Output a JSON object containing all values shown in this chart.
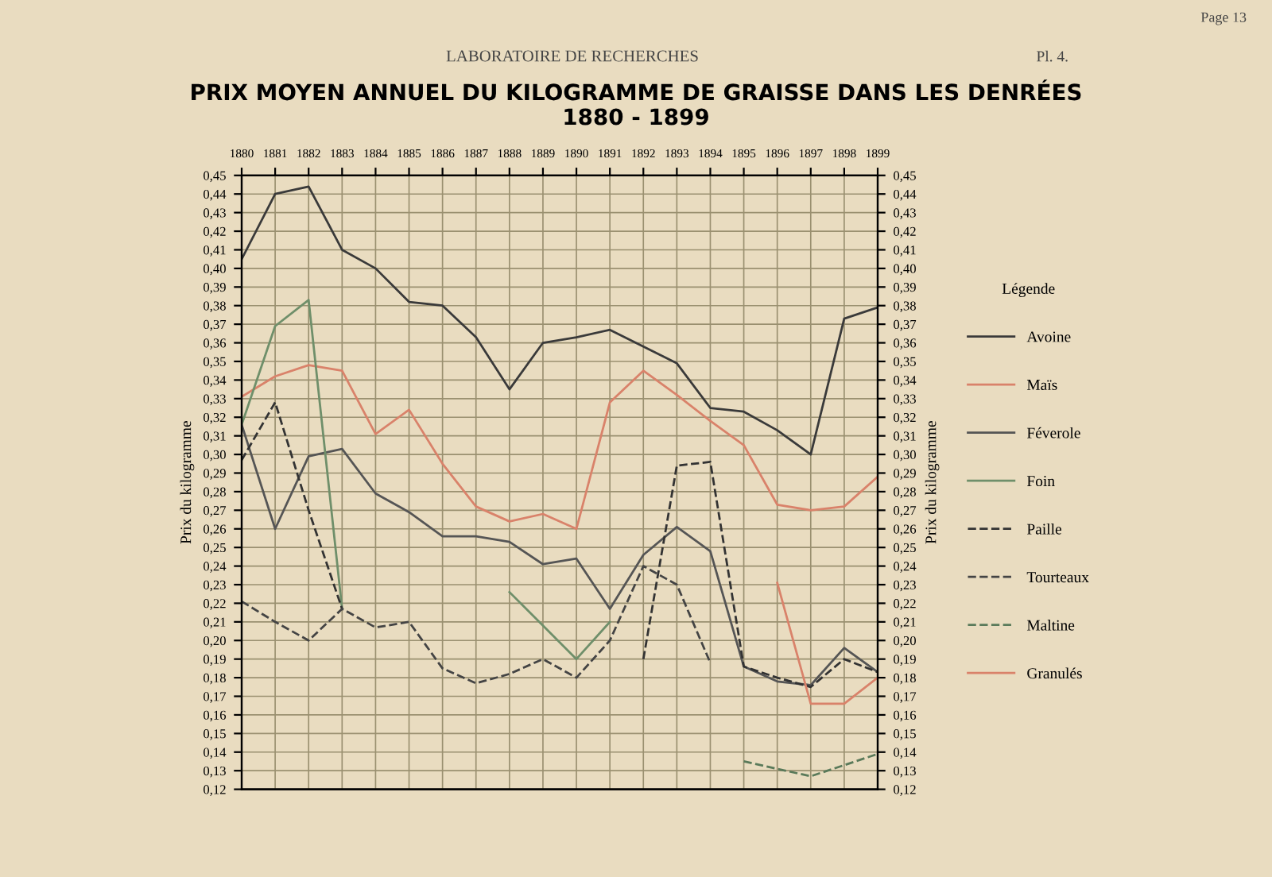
{
  "chart_data": {
    "type": "line",
    "title": "PRIX MOYEN ANNUEL DU KILOGRAMME DE GRAISSE DANS LES DENRÉES\n1880 - 1899",
    "ylabel": "Prix du kilogramme",
    "y2label": "Prix du kilogramme",
    "legend_title": "Légende",
    "annotations": [
      "LABORATOIRE DE RECHERCHES",
      "Page 13",
      "Pl. 4."
    ],
    "categories": [
      "1880",
      "1881",
      "1882",
      "1883",
      "1884",
      "1885",
      "1886",
      "1887",
      "1888",
      "1889",
      "1890",
      "1891",
      "1892",
      "1893",
      "1894",
      "1895",
      "1896",
      "1897",
      "1898",
      "1899"
    ],
    "series": [
      {
        "name": "Avoine",
        "color": "#3a3a3a",
        "values": [
          0.405,
          0.44,
          0.444,
          0.41,
          0.4,
          0.382,
          0.38,
          0.363,
          0.335,
          0.36,
          0.363,
          0.367,
          0.358,
          0.349,
          0.325,
          0.323,
          0.313,
          0.3,
          0.373,
          0.379
        ]
      },
      {
        "name": "Maïs",
        "color": "#d9826a",
        "values": [
          0.331,
          0.342,
          0.348,
          0.345,
          0.311,
          0.324,
          0.295,
          0.272,
          0.264,
          0.268,
          0.26,
          0.328,
          0.345,
          0.332,
          0.318,
          0.305,
          0.273,
          0.27,
          0.272,
          0.288
        ]
      },
      {
        "name": "Féverole",
        "color": "#555555",
        "values": [
          0.316,
          0.26,
          0.299,
          0.303,
          0.279,
          0.269,
          0.256,
          0.256,
          0.253,
          0.241,
          0.244,
          0.217,
          0.246,
          0.261,
          0.248,
          0.186,
          0.178,
          0.176,
          0.196,
          0.183
        ]
      },
      {
        "name": "Foin",
        "color": "#6f8f6a",
        "values": [
          0.316,
          0.369,
          0.383,
          0.217,
          null,
          null,
          null,
          null,
          0.226,
          0.208,
          0.19,
          0.21,
          null,
          null,
          null,
          null,
          null,
          null,
          null,
          null
        ]
      },
      {
        "name": "Paille",
        "color": "#333333",
        "line_style": "dashed",
        "values": [
          0.297,
          0.328,
          0.27,
          0.217,
          null,
          null,
          null,
          null,
          null,
          null,
          null,
          null,
          0.19,
          0.294,
          0.296,
          0.186,
          0.18,
          0.175,
          0.19,
          0.183
        ]
      },
      {
        "name": "Tourteaux",
        "color": "#444444",
        "line_style": "dashed",
        "values": [
          0.221,
          0.21,
          0.2,
          0.217,
          0.207,
          0.21,
          0.185,
          0.177,
          0.182,
          0.19,
          0.18,
          0.2,
          0.24,
          0.23,
          0.188,
          null,
          null,
          null,
          null,
          null
        ]
      },
      {
        "name": "Maltine",
        "color": "#5a7a5a",
        "line_style": "dashed",
        "values": [
          null,
          null,
          null,
          null,
          null,
          null,
          null,
          null,
          null,
          null,
          null,
          null,
          null,
          null,
          null,
          0.135,
          0.131,
          0.127,
          0.133,
          0.139
        ]
      },
      {
        "name": "Granulés",
        "color": "#d9826a",
        "values": [
          null,
          null,
          null,
          null,
          null,
          null,
          null,
          null,
          null,
          null,
          null,
          null,
          null,
          null,
          null,
          null,
          0.231,
          0.166,
          0.166,
          0.18
        ]
      }
    ],
    "ylim": [
      0.12,
      0.45
    ],
    "y2lim": [
      0.12,
      0.45
    ],
    "yticks": [
      {
        "value": 0.12,
        "label": "0,12"
      },
      {
        "value": 0.13,
        "label": "0,13"
      },
      {
        "value": 0.14,
        "label": "0,14"
      },
      {
        "value": 0.15,
        "label": "0,15"
      },
      {
        "value": 0.16,
        "label": "0,16"
      },
      {
        "value": 0.17,
        "label": "0,17"
      },
      {
        "value": 0.18,
        "label": "0,18"
      },
      {
        "value": 0.19,
        "label": "0,19"
      },
      {
        "value": 0.2,
        "label": "0,20"
      },
      {
        "value": 0.21,
        "label": "0,21"
      },
      {
        "value": 0.22,
        "label": "0,22"
      },
      {
        "value": 0.23,
        "label": "0,23"
      },
      {
        "value": 0.24,
        "label": "0,24"
      },
      {
        "value": 0.25,
        "label": "0,25"
      },
      {
        "value": 0.26,
        "label": "0,26"
      },
      {
        "value": 0.27,
        "label": "0,27"
      },
      {
        "value": 0.28,
        "label": "0,28"
      },
      {
        "value": 0.29,
        "label": "0,29"
      },
      {
        "value": 0.3,
        "label": "0,30"
      },
      {
        "value": 0.31,
        "label": "0,31"
      },
      {
        "value": 0.32,
        "label": "0,32"
      },
      {
        "value": 0.33,
        "label": "0,33"
      },
      {
        "value": 0.34,
        "label": "0,34"
      },
      {
        "value": 0.35,
        "label": "0,35"
      },
      {
        "value": 0.36,
        "label": "0,36"
      },
      {
        "value": 0.37,
        "label": "0,37"
      },
      {
        "value": 0.38,
        "label": "0,38"
      },
      {
        "value": 0.39,
        "label": "0,39"
      },
      {
        "value": 0.4,
        "label": "0,40"
      },
      {
        "value": 0.41,
        "label": "0,41"
      },
      {
        "value": 0.42,
        "label": "0,42"
      },
      {
        "value": 0.43,
        "label": "0,43"
      },
      {
        "value": 0.44,
        "label": "0,44"
      },
      {
        "value": 0.45,
        "label": "0,45"
      }
    ],
    "y2ticks": [
      {
        "value": 0.12,
        "label": "0,12"
      },
      {
        "value": 0.13,
        "label": "0,13"
      },
      {
        "value": 0.14,
        "label": "0,14"
      },
      {
        "value": 0.15,
        "label": "0,15"
      },
      {
        "value": 0.16,
        "label": "0,16"
      },
      {
        "value": 0.17,
        "label": "0,17"
      },
      {
        "value": 0.18,
        "label": "0,18"
      },
      {
        "value": 0.19,
        "label": "0,19"
      },
      {
        "value": 0.2,
        "label": "0,20"
      },
      {
        "value": 0.21,
        "label": "0,21"
      },
      {
        "value": 0.22,
        "label": "0,22"
      },
      {
        "value": 0.23,
        "label": "0,23"
      },
      {
        "value": 0.24,
        "label": "0,24"
      },
      {
        "value": 0.25,
        "label": "0,25"
      },
      {
        "value": 0.26,
        "label": "0,26"
      },
      {
        "value": 0.27,
        "label": "0,27"
      },
      {
        "value": 0.28,
        "label": "0,28"
      },
      {
        "value": 0.29,
        "label": "0,29"
      },
      {
        "value": 0.3,
        "label": "0,30"
      },
      {
        "value": 0.31,
        "label": "0,31"
      },
      {
        "value": 0.32,
        "label": "0,32"
      },
      {
        "value": 0.33,
        "label": "0,33"
      },
      {
        "value": 0.34,
        "label": "0,34"
      },
      {
        "value": 0.35,
        "label": "0,35"
      },
      {
        "value": 0.36,
        "label": "0,36"
      },
      {
        "value": 0.37,
        "label": "0,37"
      },
      {
        "value": 0.38,
        "label": "0,38"
      },
      {
        "value": 0.39,
        "label": "0,39"
      },
      {
        "value": 0.4,
        "label": "0,40"
      },
      {
        "value": 0.41,
        "label": "0,41"
      },
      {
        "value": 0.42,
        "label": "0,42"
      },
      {
        "value": 0.43,
        "label": "0,43"
      },
      {
        "value": 0.44,
        "label": "0,44"
      },
      {
        "value": 0.45,
        "label": "0,45"
      }
    ],
    "grid": true,
    "legend": "right"
  }
}
